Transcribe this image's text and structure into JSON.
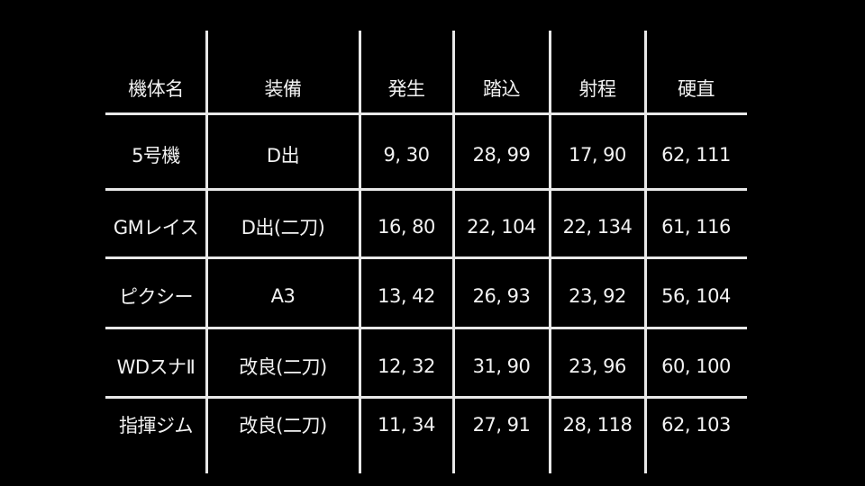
{
  "table": {
    "headers": [
      "機体名",
      "装備",
      "発生",
      "踏込",
      "射程",
      "硬直"
    ],
    "rows": [
      [
        "5号機",
        "D出",
        "9, 30",
        "28, 99",
        "17, 90",
        "62, 111"
      ],
      [
        "GMレイス",
        "D出(二刀)",
        "16, 80",
        "22, 104",
        "22, 134",
        "61, 116"
      ],
      [
        "ピクシー",
        "A3",
        "13, 42",
        "26, 93",
        "23, 92",
        "56, 104"
      ],
      [
        "WDスナⅡ",
        "改良(二刀)",
        "12, 32",
        "31, 90",
        "23, 96",
        "60, 100"
      ],
      [
        "指揮ジム",
        "改良(二刀)",
        "11, 34",
        "27, 91",
        "28, 118",
        "62, 103"
      ]
    ]
  }
}
